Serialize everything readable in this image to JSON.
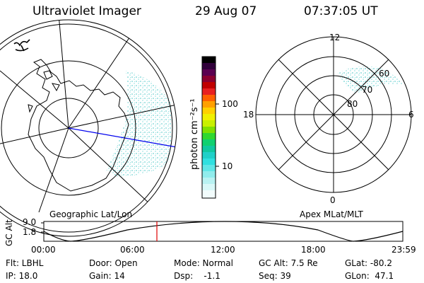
{
  "header": {
    "instrument": "Ultraviolet Imager",
    "date": "29 Aug 07",
    "time": "07:37:05 UT"
  },
  "colorbar": {
    "unit_label": "photon cm⁻²s⁻¹",
    "ticks": [
      "100",
      "10"
    ]
  },
  "left_map": {
    "caption": "Geographic Lat/Lon"
  },
  "right_map": {
    "caption": "Apex MLat/MLT",
    "mlt_labels": [
      "12",
      "18",
      "6",
      "0"
    ],
    "lat_labels": [
      "60",
      "70",
      "80"
    ]
  },
  "orbit_plot": {
    "ylabel": "GC Alt",
    "yticks": [
      "9.0",
      "1.8"
    ],
    "xticks": [
      "00:00",
      "06:00",
      "12:00",
      "18:00",
      "23:59"
    ],
    "marker_time": "07:37",
    "marker_color": "#e00000"
  },
  "status": {
    "row1": [
      {
        "label": "Flt: LBHL"
      },
      {
        "label": "Door: Open"
      },
      {
        "label": "Mode: Normal"
      },
      {
        "label": "GC Alt: 7.5 Re"
      },
      {
        "label": "GLat: -80.2"
      }
    ],
    "row2": [
      {
        "label": "IP: 18.0"
      },
      {
        "label": "Gain: 14"
      },
      {
        "label": "Dsp:    -1.1"
      },
      {
        "label": "Seq: 39"
      },
      {
        "label": "GLon:  47.1"
      }
    ]
  }
}
